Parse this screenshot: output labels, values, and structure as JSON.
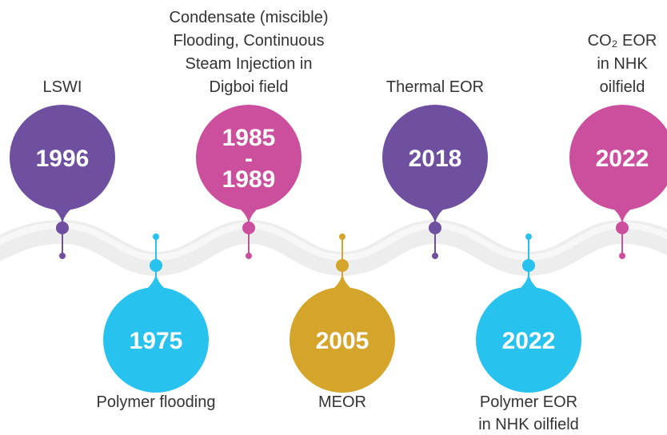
{
  "nodes": [
    {
      "year": [
        "1996"
      ],
      "label": [
        "LSWI"
      ],
      "color": "#6e4fa0"
    },
    {
      "year": [
        "1975"
      ],
      "label": [
        "Polymer flooding"
      ],
      "color": "#28c2ee"
    },
    {
      "year": [
        "1985",
        "-",
        "1989"
      ],
      "label": [
        "Condensate (miscible)",
        "Flooding, Continuous",
        "Steam Injection in",
        "Digboi field"
      ],
      "color": "#cc4f9e"
    },
    {
      "year": [
        "2005"
      ],
      "label": [
        "MEOR"
      ],
      "color": "#d4a52a"
    },
    {
      "year": [
        "2018"
      ],
      "label": [
        "Thermal EOR"
      ],
      "color": "#6e4fa0"
    },
    {
      "year": [
        "2022"
      ],
      "label": [
        "Polymer EOR",
        "in NHK oilfield"
      ],
      "color": "#28c2ee"
    },
    {
      "year": [
        "2022"
      ],
      "label": [
        "CO₂ EOR",
        "in NHK",
        "oilfield"
      ],
      "color": "#cc4f9e"
    }
  ]
}
